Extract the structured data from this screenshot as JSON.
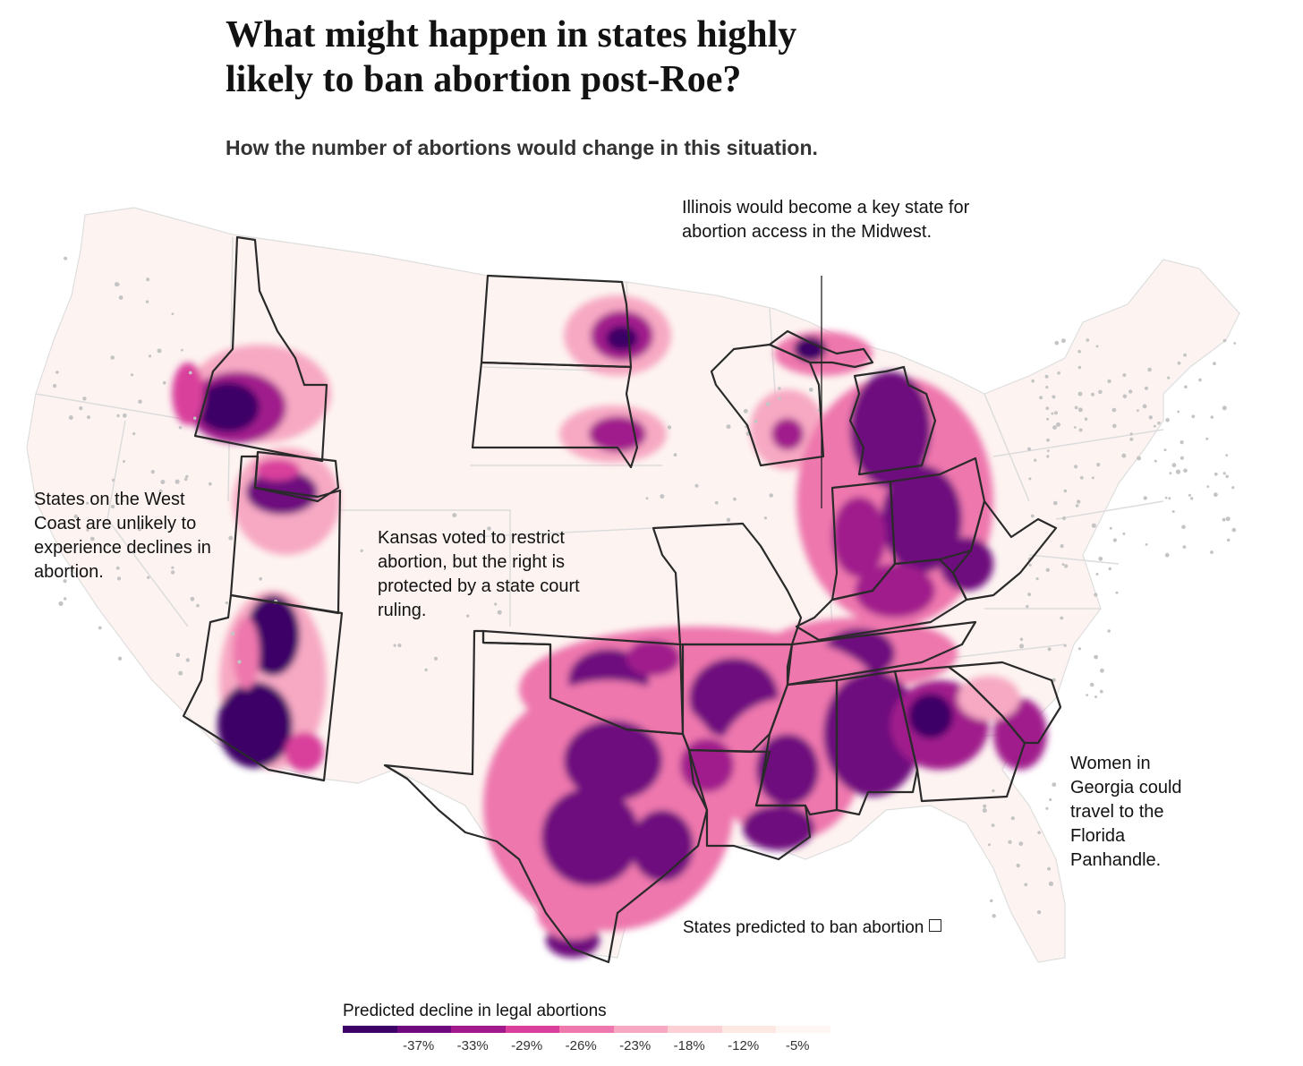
{
  "title": "What might happen in states highly likely to ban abortion post-Roe?",
  "subtitle": "How the number of abortions would change in this situation.",
  "annotations": {
    "illinois": "Illinois would become a key state for abortion access in the Midwest.",
    "west_coast": "States on the West Coast are unlikely to experience declines in abortion.",
    "kansas": "Kansas voted to restrict abortion, but the right is protected by a state court ruling.",
    "georgia": "Women in Georgia could travel to the Florida Panhandle."
  },
  "ban_note": "States predicted to ban abortion",
  "legend": {
    "title": "Predicted decline in legal abortions",
    "labels": [
      "-37%",
      "-33%",
      "-29%",
      "-26%",
      "-23%",
      "-18%",
      "-12%",
      "-5%"
    ],
    "colors": [
      "#3d0066",
      "#6e0a7e",
      "#a01a8c",
      "#d9409c",
      "#ee77ad",
      "#f7a9c3",
      "#fbcfd4",
      "#fde8e4",
      "#fdf6f2"
    ]
  },
  "colors": {
    "land": "#fdf4f1",
    "state_border_light": "#dcdcdc",
    "ban_state_border": "#2a2a2a",
    "city_dot": "#c4c4c4"
  }
}
